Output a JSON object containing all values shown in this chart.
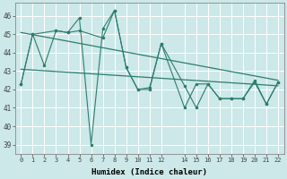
{
  "xlabel": "Humidex (Indice chaleur)",
  "ylabel": "",
  "bg_color": "#cce8e8",
  "grid_color": "#ffffff",
  "line_color": "#2d7d6e",
  "xlim": [
    -0.5,
    22.5
  ],
  "ylim": [
    38.5,
    46.7
  ],
  "yticks": [
    39,
    40,
    41,
    42,
    43,
    44,
    45,
    46
  ],
  "xticks": [
    0,
    1,
    2,
    3,
    4,
    5,
    6,
    7,
    8,
    9,
    10,
    11,
    12,
    14,
    15,
    16,
    17,
    18,
    19,
    20,
    21,
    22
  ],
  "xtick_labels": [
    "0",
    "1",
    "2",
    "3",
    "4",
    "5",
    "6",
    "7",
    "8",
    "9",
    "10",
    "11",
    "12",
    "14",
    "15",
    "16",
    "17",
    "18",
    "19",
    "20",
    "21",
    "22"
  ],
  "series1_x": [
    0,
    1,
    2,
    3,
    4,
    5,
    6,
    7,
    8,
    9,
    10,
    11,
    12,
    14,
    15,
    16,
    17,
    18,
    19,
    20,
    21,
    22
  ],
  "series1_y": [
    42.3,
    45.0,
    43.3,
    45.2,
    45.1,
    45.9,
    39.0,
    45.3,
    46.3,
    43.2,
    42.0,
    42.0,
    44.5,
    41.0,
    42.3,
    42.3,
    41.5,
    41.5,
    41.5,
    42.4,
    41.2,
    42.4
  ],
  "series2_x": [
    0,
    1,
    3,
    4,
    5,
    7,
    8,
    9,
    10,
    11,
    12,
    14,
    15,
    16,
    17,
    18,
    19,
    20,
    21,
    22
  ],
  "series2_y": [
    42.3,
    45.0,
    45.2,
    45.1,
    45.2,
    44.8,
    46.3,
    43.2,
    42.0,
    42.1,
    44.5,
    42.2,
    41.0,
    42.3,
    41.5,
    41.5,
    41.5,
    42.5,
    41.2,
    42.4
  ],
  "trend1_x": [
    0,
    22
  ],
  "trend1_y": [
    45.1,
    42.5
  ],
  "trend2_x": [
    0,
    22
  ],
  "trend2_y": [
    43.1,
    42.2
  ],
  "figwidth": 3.2,
  "figheight": 2.0,
  "dpi": 100
}
